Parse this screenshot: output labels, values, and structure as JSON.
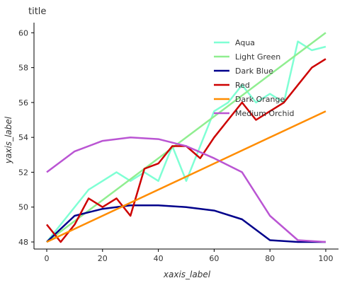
{
  "chart_data": {
    "type": "line",
    "title": "title",
    "xlabel": "xaxis_label",
    "ylabel": "yaxis_label",
    "xlim": [
      0,
      100
    ],
    "ylim": [
      48,
      60.5
    ],
    "xticks": [
      0,
      20,
      40,
      60,
      80,
      100
    ],
    "yticks": [
      48,
      50,
      52,
      54,
      56,
      58,
      60
    ],
    "grid": false,
    "legend_position": "top-center",
    "series": [
      {
        "name": "Aqua",
        "color": "#7fffd4",
        "x": [
          0,
          15,
          20,
          25,
          30,
          35,
          40,
          45,
          50,
          60,
          65,
          70,
          75,
          80,
          85,
          90,
          95,
          100
        ],
        "y": [
          48.0,
          51.0,
          51.5,
          52.0,
          51.5,
          52.0,
          51.5,
          53.5,
          51.5,
          55.5,
          56.0,
          57.0,
          56.0,
          56.5,
          56.0,
          59.5,
          59.0,
          59.2
        ]
      },
      {
        "name": "Light Green",
        "color": "#90ee90",
        "x": [
          0,
          100
        ],
        "y": [
          48.0,
          60.0
        ]
      },
      {
        "name": "Dark Blue",
        "color": "#00008b",
        "x": [
          0,
          10,
          20,
          30,
          40,
          50,
          60,
          70,
          80,
          90,
          100
        ],
        "y": [
          48.0,
          49.5,
          49.9,
          50.1,
          50.1,
          50.0,
          49.8,
          49.3,
          48.1,
          48.0,
          48.0
        ]
      },
      {
        "name": "Red",
        "color": "#cd0000",
        "x": [
          0,
          5,
          10,
          15,
          20,
          25,
          30,
          35,
          40,
          45,
          50,
          55,
          60,
          65,
          70,
          75,
          80,
          85,
          90,
          95,
          100
        ],
        "y": [
          49.0,
          48.0,
          49.0,
          50.5,
          50.0,
          50.5,
          49.5,
          52.2,
          52.5,
          53.5,
          53.5,
          52.8,
          54.0,
          55.0,
          56.0,
          55.0,
          55.5,
          56.0,
          57.0,
          58.0,
          58.5
        ]
      },
      {
        "name": "Dark Orange",
        "color": "#ff8c00",
        "x": [
          0,
          100
        ],
        "y": [
          48.0,
          55.5
        ]
      },
      {
        "name": "Medium Orchid",
        "color": "#ba55d3",
        "x": [
          0,
          10,
          20,
          30,
          40,
          50,
          60,
          70,
          80,
          90,
          100
        ],
        "y": [
          52.0,
          53.2,
          53.8,
          54.0,
          53.9,
          53.5,
          52.8,
          52.0,
          49.5,
          48.1,
          48.0
        ]
      }
    ]
  }
}
